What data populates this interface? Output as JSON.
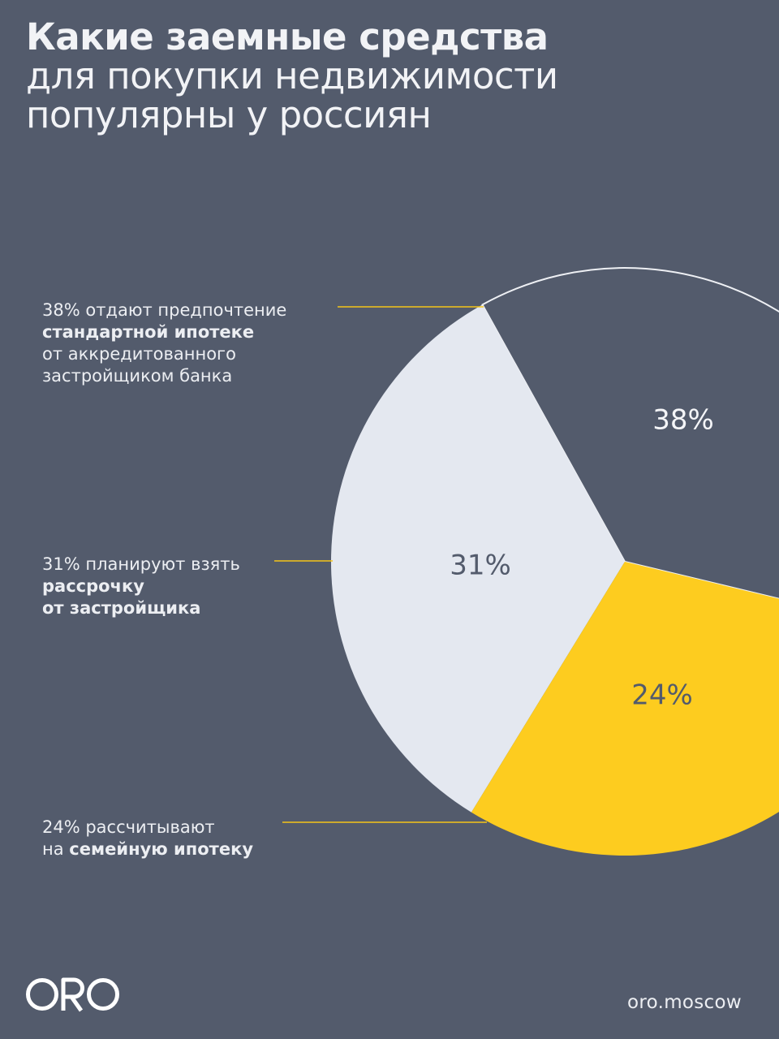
{
  "title": {
    "bold": "Какие заемные средства",
    "rest": "для покупки недвижимости\nпопулярны у россиян"
  },
  "legend": [
    {
      "pre": "38% отдают предпочтение",
      "bold": "стандартной ипотеке",
      "post": "от аккредитованного\nзастройщиком банка"
    },
    {
      "pre": "31% планируют взять",
      "bold": "рассрочку\nот застройщика",
      "post": ""
    },
    {
      "pre": "24% рассчитывают",
      "inline": "на ",
      "bold": "семейную ипотеку",
      "post": ""
    }
  ],
  "chart_data": {
    "type": "pie",
    "title": "Какие заемные средства для покупки недвижимости популярны у россиян",
    "slices": [
      {
        "label": "38%",
        "value": 38,
        "color": "#535b6c"
      },
      {
        "label": "31%",
        "value": 31,
        "color": "#e4e8f0"
      },
      {
        "label": "24%",
        "value": 24,
        "color": "#fdcc1f"
      }
    ]
  },
  "colors": {
    "background": "#535b6c",
    "accent": "#fdcc1f",
    "light": "#e4e8f0",
    "leader": "#f5c518"
  },
  "footer": {
    "logo": "ORO",
    "site": "oro.moscow"
  }
}
